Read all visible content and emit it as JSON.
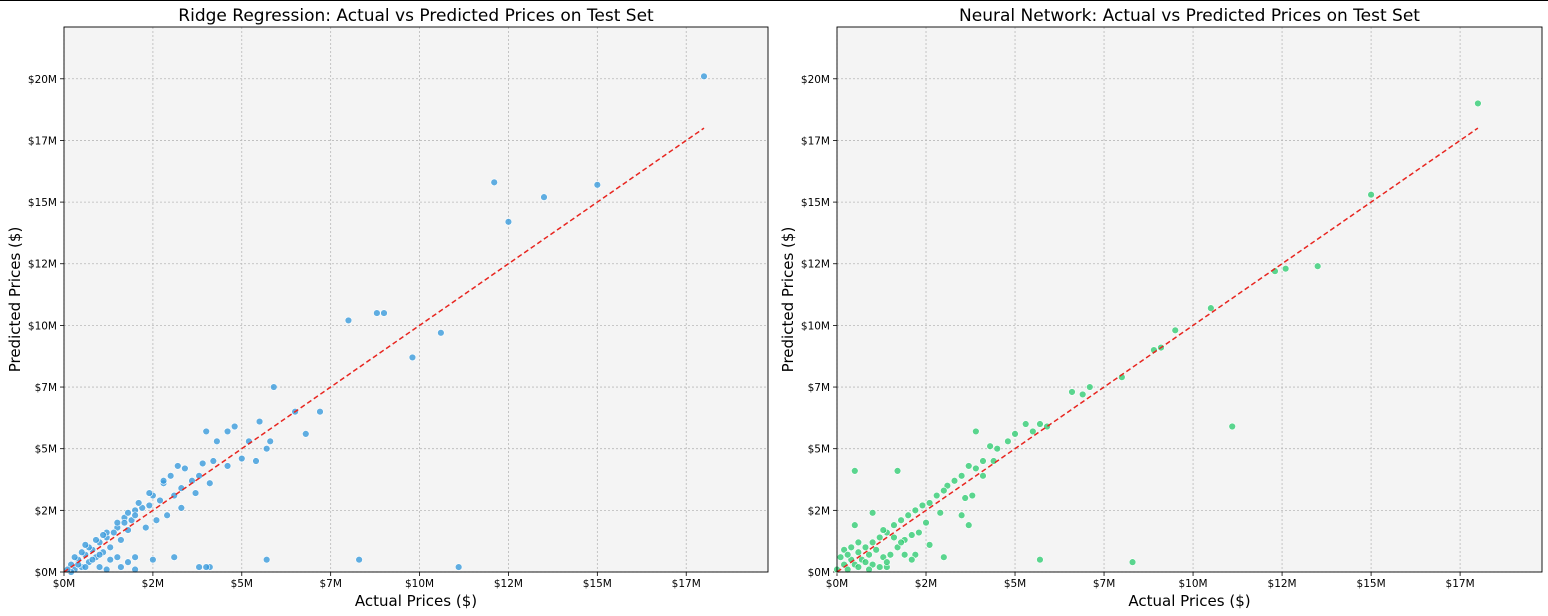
{
  "chart_data": [
    {
      "type": "scatter",
      "title": "Ridge Regression: Actual vs Predicted Prices on Test Set",
      "xlabel": "Actual Prices ($)",
      "ylabel": "Predicted Prices ($)",
      "xlim": [
        0,
        19.8
      ],
      "ylim": [
        0,
        22.1
      ],
      "x_ticks": [
        "$0M",
        "$2M",
        "$5M",
        "$7M",
        "$10M",
        "$12M",
        "$15M",
        "$17M"
      ],
      "x_tick_values": [
        0,
        2.5,
        5,
        7.5,
        10,
        12.5,
        15,
        17.5
      ],
      "y_ticks": [
        "$0M",
        "$2M",
        "$5M",
        "$7M",
        "$10M",
        "$12M",
        "$15M",
        "$17M",
        "$20M"
      ],
      "y_tick_values": [
        0,
        2.5,
        5,
        7.5,
        10,
        12.5,
        15,
        17.5,
        20
      ],
      "grid": true,
      "point_color": "#3498db",
      "reference_line_color": "#e8251f",
      "reference_line": [
        [
          0,
          0
        ],
        [
          18.0,
          18.0
        ]
      ],
      "points": [
        [
          18.0,
          20.1
        ],
        [
          12.1,
          15.8
        ],
        [
          13.5,
          15.2
        ],
        [
          15.0,
          15.7
        ],
        [
          12.5,
          14.2
        ],
        [
          8.8,
          10.5
        ],
        [
          9.0,
          10.5
        ],
        [
          8.0,
          10.2
        ],
        [
          10.6,
          9.7
        ],
        [
          9.8,
          8.7
        ],
        [
          5.9,
          7.5
        ],
        [
          6.5,
          6.5
        ],
        [
          7.2,
          6.5
        ],
        [
          6.8,
          5.6
        ],
        [
          5.5,
          6.1
        ],
        [
          5.8,
          5.3
        ],
        [
          5.2,
          5.3
        ],
        [
          5.4,
          4.5
        ],
        [
          5.0,
          4.6
        ],
        [
          5.7,
          5.0
        ],
        [
          4.8,
          5.9
        ],
        [
          4.6,
          5.7
        ],
        [
          4.3,
          5.3
        ],
        [
          4.0,
          5.7
        ],
        [
          4.6,
          4.3
        ],
        [
          4.2,
          4.5
        ],
        [
          3.9,
          4.4
        ],
        [
          3.8,
          3.9
        ],
        [
          3.4,
          4.2
        ],
        [
          3.2,
          4.3
        ],
        [
          3.6,
          3.7
        ],
        [
          3.0,
          3.9
        ],
        [
          2.8,
          3.6
        ],
        [
          3.3,
          3.4
        ],
        [
          3.1,
          3.1
        ],
        [
          2.7,
          2.9
        ],
        [
          2.5,
          3.1
        ],
        [
          2.4,
          2.7
        ],
        [
          2.2,
          2.6
        ],
        [
          2.0,
          2.5
        ],
        [
          1.9,
          2.1
        ],
        [
          1.7,
          2.2
        ],
        [
          1.5,
          1.8
        ],
        [
          1.4,
          1.6
        ],
        [
          1.2,
          1.4
        ],
        [
          1.0,
          1.2
        ],
        [
          0.8,
          0.9
        ],
        [
          0.6,
          0.7
        ],
        [
          0.4,
          0.5
        ],
        [
          0.2,
          0.3
        ],
        [
          2.9,
          2.3
        ],
        [
          3.3,
          2.6
        ],
        [
          3.7,
          3.2
        ],
        [
          4.1,
          3.6
        ],
        [
          2.6,
          2.1
        ],
        [
          2.3,
          1.8
        ],
        [
          1.8,
          1.7
        ],
        [
          1.6,
          1.3
        ],
        [
          1.3,
          1.0
        ],
        [
          1.1,
          0.8
        ],
        [
          0.9,
          0.6
        ],
        [
          0.7,
          0.4
        ],
        [
          0.5,
          0.2
        ],
        [
          0.3,
          0.1
        ],
        [
          1.2,
          1.6
        ],
        [
          1.5,
          2.0
        ],
        [
          1.8,
          2.4
        ],
        [
          2.1,
          2.8
        ],
        [
          2.4,
          3.2
        ],
        [
          2.8,
          3.7
        ],
        [
          0.7,
          1.0
        ],
        [
          0.9,
          1.3
        ],
        [
          1.1,
          1.5
        ],
        [
          1.7,
          2.0
        ],
        [
          2.0,
          2.3
        ],
        [
          0.5,
          0.8
        ],
        [
          0.6,
          1.1
        ],
        [
          0.3,
          0.6
        ],
        [
          0.4,
          0.3
        ],
        [
          0.8,
          0.5
        ],
        [
          1.0,
          0.7
        ],
        [
          1.3,
          0.5
        ],
        [
          1.5,
          0.6
        ],
        [
          1.8,
          0.4
        ],
        [
          2.0,
          0.6
        ],
        [
          0.6,
          0.2
        ],
        [
          1.0,
          0.2
        ],
        [
          1.2,
          0.1
        ],
        [
          1.6,
          0.2
        ],
        [
          2.0,
          0.1
        ],
        [
          2.5,
          0.5
        ],
        [
          3.1,
          0.6
        ],
        [
          3.8,
          0.2
        ],
        [
          4.1,
          0.2
        ],
        [
          4.0,
          0.2
        ],
        [
          5.7,
          0.5
        ],
        [
          8.3,
          0.5
        ],
        [
          11.1,
          0.2
        ],
        [
          0.2,
          0.0
        ],
        [
          0.1,
          0.1
        ]
      ]
    },
    {
      "type": "scatter",
      "title": "Neural Network: Actual vs Predicted Prices on Test Set",
      "xlabel": "Actual Prices ($)",
      "ylabel": "Predicted Prices ($)",
      "xlim": [
        0,
        19.8
      ],
      "ylim": [
        0,
        22.1
      ],
      "x_ticks": [
        "$0M",
        "$2M",
        "$5M",
        "$7M",
        "$10M",
        "$12M",
        "$15M",
        "$17M"
      ],
      "x_tick_values": [
        0,
        2.5,
        5,
        7.5,
        10,
        12.5,
        15,
        17.5
      ],
      "y_ticks": [
        "$0M",
        "$2M",
        "$5M",
        "$7M",
        "$10M",
        "$12M",
        "$15M",
        "$17M",
        "$20M"
      ],
      "y_tick_values": [
        0,
        2.5,
        5,
        7.5,
        10,
        12.5,
        15,
        17.5,
        20
      ],
      "grid": true,
      "point_color": "#2ecc71",
      "reference_line_color": "#e8251f",
      "reference_line": [
        [
          0,
          0
        ],
        [
          18.0,
          18.0
        ]
      ],
      "points": [
        [
          18.0,
          19.0
        ],
        [
          15.0,
          15.3
        ],
        [
          12.3,
          12.2
        ],
        [
          12.6,
          12.3
        ],
        [
          13.5,
          12.4
        ],
        [
          10.5,
          10.7
        ],
        [
          9.5,
          9.8
        ],
        [
          9.1,
          9.1
        ],
        [
          8.9,
          9.0
        ],
        [
          8.0,
          7.9
        ],
        [
          7.1,
          7.5
        ],
        [
          6.6,
          7.3
        ],
        [
          6.9,
          7.2
        ],
        [
          5.9,
          5.9
        ],
        [
          5.7,
          6.0
        ],
        [
          5.5,
          5.7
        ],
        [
          5.3,
          6.0
        ],
        [
          5.0,
          5.6
        ],
        [
          4.8,
          5.3
        ],
        [
          4.5,
          5.0
        ],
        [
          4.3,
          5.1
        ],
        [
          4.4,
          4.5
        ],
        [
          4.1,
          4.5
        ],
        [
          3.9,
          4.2
        ],
        [
          3.7,
          4.3
        ],
        [
          3.5,
          3.9
        ],
        [
          3.3,
          3.7
        ],
        [
          3.1,
          3.5
        ],
        [
          3.0,
          3.3
        ],
        [
          2.8,
          3.1
        ],
        [
          2.6,
          2.8
        ],
        [
          2.4,
          2.7
        ],
        [
          2.2,
          2.5
        ],
        [
          2.0,
          2.3
        ],
        [
          1.8,
          2.1
        ],
        [
          1.6,
          1.9
        ],
        [
          1.4,
          1.6
        ],
        [
          1.2,
          1.4
        ],
        [
          1.0,
          1.2
        ],
        [
          0.8,
          1.0
        ],
        [
          0.6,
          0.8
        ],
        [
          0.4,
          0.5
        ],
        [
          0.2,
          0.3
        ],
        [
          3.9,
          5.7
        ],
        [
          4.1,
          3.9
        ],
        [
          3.6,
          3.0
        ],
        [
          3.8,
          3.1
        ],
        [
          3.5,
          2.3
        ],
        [
          2.9,
          2.4
        ],
        [
          2.5,
          2.0
        ],
        [
          2.1,
          1.5
        ],
        [
          1.9,
          1.3
        ],
        [
          1.7,
          1.0
        ],
        [
          1.5,
          0.7
        ],
        [
          1.3,
          0.6
        ],
        [
          1.1,
          0.9
        ],
        [
          0.9,
          0.7
        ],
        [
          0.7,
          0.5
        ],
        [
          0.5,
          0.3
        ],
        [
          0.3,
          0.1
        ],
        [
          0.5,
          4.1
        ],
        [
          1.7,
          4.1
        ],
        [
          1.0,
          2.4
        ],
        [
          0.5,
          1.9
        ],
        [
          1.3,
          1.7
        ],
        [
          1.6,
          1.4
        ],
        [
          0.2,
          0.9
        ],
        [
          0.4,
          1.0
        ],
        [
          0.6,
          1.2
        ],
        [
          0.1,
          0.6
        ],
        [
          0.3,
          0.7
        ],
        [
          0.8,
          0.4
        ],
        [
          1.0,
          0.3
        ],
        [
          1.4,
          0.2
        ],
        [
          0.6,
          0.2
        ],
        [
          1.9,
          0.7
        ],
        [
          2.2,
          0.7
        ],
        [
          2.1,
          0.5
        ],
        [
          1.4,
          0.4
        ],
        [
          3.0,
          0.6
        ],
        [
          3.7,
          1.9
        ],
        [
          2.6,
          1.1
        ],
        [
          2.3,
          1.6
        ],
        [
          1.8,
          1.2
        ],
        [
          5.7,
          0.5
        ],
        [
          8.3,
          0.4
        ],
        [
          11.1,
          5.9
        ],
        [
          0.9,
          0.1
        ],
        [
          1.2,
          0.2
        ],
        [
          0.0,
          0.1
        ]
      ]
    }
  ]
}
